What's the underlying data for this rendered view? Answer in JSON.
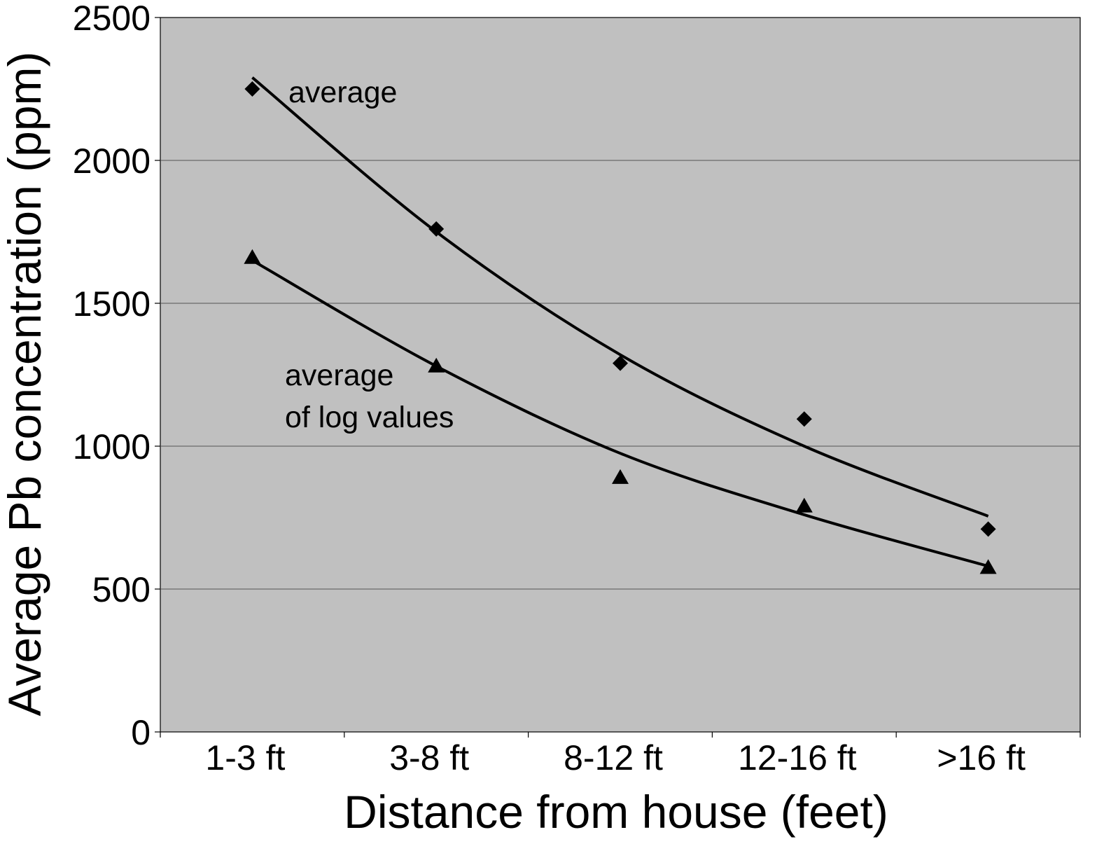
{
  "chart_data": {
    "type": "scatter",
    "title": "",
    "xlabel": "Distance from house (feet)",
    "ylabel": "Average Pb concentration (ppm)",
    "categories": [
      "1-3 ft",
      "3-8 ft",
      "8-12 ft",
      "12-16 ft",
      ">16 ft"
    ],
    "ylim": [
      0,
      2500
    ],
    "yticks": [
      "0",
      "500",
      "1000",
      "1500",
      "2000",
      "2500"
    ],
    "grid": true,
    "background_color": "#c0c0c0",
    "series": [
      {
        "name": "average",
        "marker": "diamond",
        "values": [
          2250,
          1760,
          1290,
          1095,
          710
        ],
        "trendline": [
          2290,
          1750,
          1320,
          1000,
          755
        ]
      },
      {
        "name": "average of log values",
        "marker": "triangle",
        "values": [
          1660,
          1280,
          890,
          790,
          575
        ],
        "trendline": [
          1650,
          1280,
          975,
          760,
          580
        ]
      }
    ],
    "annotations": [
      {
        "text": "average",
        "series": 0
      },
      {
        "text": "average",
        "series": 1
      },
      {
        "text": "of log values",
        "series": 1
      }
    ]
  }
}
